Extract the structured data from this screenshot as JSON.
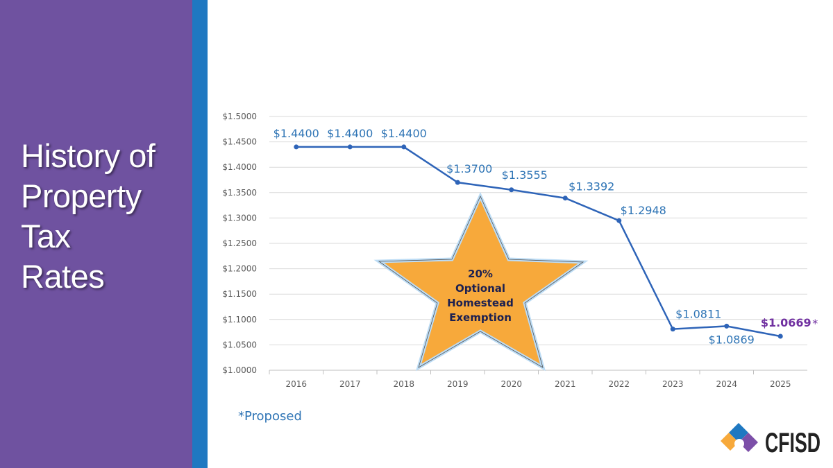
{
  "slide": {
    "title_lines": [
      "History of",
      "Property",
      "Tax",
      "Rates"
    ],
    "footnote": "*Proposed",
    "logo_text": "CFISD"
  },
  "colors": {
    "sidebar": "#6f52a0",
    "strip": "#1f78c1",
    "line": "#2e64b8",
    "label": "#2e74b5",
    "proposed": "#7030a0",
    "star": "#f7a93b"
  },
  "callout": {
    "shape": "star",
    "lines": [
      "20%",
      "Optional",
      "Homestead",
      "Exemption"
    ]
  },
  "chart_data": {
    "type": "line",
    "categories": [
      "2016",
      "2017",
      "2018",
      "2019",
      "2020",
      "2021",
      "2022",
      "2023",
      "2024",
      "2025"
    ],
    "values": [
      1.44,
      1.44,
      1.44,
      1.37,
      1.3555,
      1.3392,
      1.2948,
      1.0811,
      1.0869,
      1.0669
    ],
    "data_labels": [
      "$1.4400",
      "$1.4400",
      "$1.4400",
      "$1.3700",
      "$1.3555",
      "$1.3392",
      "$1.2948",
      "$1.0811",
      "$1.0869",
      "$1.0669"
    ],
    "proposed_marker": "*",
    "ylim": [
      1.0,
      1.5
    ],
    "yticks": [
      "$1.0000",
      "$1.0500",
      "$1.1000",
      "$1.1500",
      "$1.2000",
      "$1.2500",
      "$1.3000",
      "$1.3500",
      "$1.4000",
      "$1.4500",
      "$1.5000"
    ],
    "grid": true,
    "legend": "none"
  }
}
